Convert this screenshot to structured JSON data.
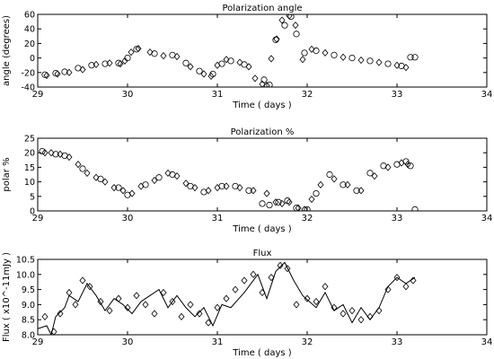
{
  "chart_data": [
    {
      "type": "scatter",
      "title": "Polarization angle",
      "xlabel": "Time ( days )",
      "ylabel": "angle (degrees)",
      "xlim": [
        29,
        34
      ],
      "ylim": [
        -40,
        60
      ],
      "xticks": [
        29,
        30,
        31,
        32,
        33,
        34
      ],
      "yticks": [
        -40,
        -20,
        0,
        20,
        40,
        60
      ],
      "grid": false,
      "series": [
        {
          "marker": "diamond",
          "x": [
            29.1,
            29.22,
            29.35,
            29.5,
            29.65,
            29.8,
            29.92,
            29.97,
            30.04,
            30.12,
            30.25,
            30.4,
            30.55,
            30.7,
            30.85,
            30.93,
            31.0,
            31.1,
            31.25,
            31.35,
            31.42,
            31.5,
            31.55,
            31.6,
            31.66,
            31.72,
            31.8,
            31.87,
            31.95,
            32.05,
            32.2,
            32.4,
            32.6,
            32.8,
            33.0,
            33.1
          ],
          "y": [
            -24,
            -22,
            -20,
            -16,
            -9,
            -7,
            -8,
            -4,
            8,
            13,
            8,
            3,
            2,
            -12,
            -22,
            -25,
            -10,
            -2,
            -6,
            -12,
            -28,
            -36,
            -38,
            -1,
            26,
            52,
            58,
            45,
            -2,
            12,
            7,
            1,
            -3,
            -6,
            -10,
            -13
          ]
        },
        {
          "marker": "circle",
          "x": [
            29.08,
            29.2,
            29.3,
            29.45,
            29.6,
            29.75,
            29.9,
            30.0,
            30.1,
            30.3,
            30.5,
            30.65,
            30.8,
            30.95,
            31.05,
            31.15,
            31.3,
            31.52,
            31.58,
            31.65,
            31.75,
            31.82,
            31.88,
            31.97,
            32.1,
            32.3,
            32.5,
            32.7,
            32.9,
            33.05,
            33.15,
            33.2
          ],
          "y": [
            -23,
            -21,
            -19,
            -14,
            -10,
            -8,
            -7,
            0,
            12,
            6,
            4,
            -7,
            -18,
            -22,
            -8,
            -4,
            -9,
            -30,
            -37,
            25,
            45,
            57,
            33,
            7,
            10,
            4,
            0,
            -4,
            -8,
            -11,
            1,
            1
          ]
        }
      ]
    },
    {
      "type": "scatter",
      "title": "Polarization %",
      "xlabel": "Time ( days )",
      "ylabel": "polar %",
      "xlim": [
        29,
        34
      ],
      "ylim": [
        0,
        25
      ],
      "xticks": [
        29,
        30,
        31,
        32,
        33,
        34
      ],
      "yticks": [
        0,
        5,
        10,
        15,
        20,
        25
      ],
      "grid": false,
      "series": [
        {
          "marker": "diamond",
          "x": [
            29.08,
            29.15,
            29.25,
            29.35,
            29.45,
            29.55,
            29.65,
            29.75,
            29.85,
            29.95,
            30.05,
            30.15,
            30.3,
            30.45,
            30.55,
            30.65,
            30.75,
            30.9,
            31.0,
            31.1,
            31.25,
            31.4,
            31.55,
            31.65,
            31.72,
            31.8,
            31.9,
            31.97,
            32.05,
            32.15,
            32.3,
            32.45,
            32.6,
            32.75,
            32.9,
            33.05,
            33.12
          ],
          "y": [
            20,
            20,
            19.5,
            18.5,
            16,
            13,
            11.5,
            10,
            8,
            7,
            6,
            8.5,
            10.5,
            13,
            12,
            9.5,
            8,
            7,
            8,
            8.5,
            8,
            7,
            6,
            3,
            2.5,
            3,
            1,
            0.5,
            4,
            9,
            11,
            9,
            7,
            12,
            15,
            16.5,
            16
          ]
        },
        {
          "marker": "circle",
          "x": [
            29.05,
            29.2,
            29.3,
            29.5,
            29.7,
            29.9,
            30.0,
            30.2,
            30.35,
            30.5,
            30.7,
            30.85,
            31.05,
            31.2,
            31.35,
            31.5,
            31.58,
            31.68,
            31.78,
            31.88,
            32.0,
            32.1,
            32.25,
            32.4,
            32.55,
            32.7,
            32.85,
            33.0,
            33.1,
            33.15,
            33.2
          ],
          "y": [
            20.5,
            19.5,
            19,
            14.5,
            11,
            8,
            5.5,
            9,
            11.5,
            12.5,
            8.5,
            6.5,
            8.5,
            8.5,
            7,
            2.5,
            2,
            3,
            3.5,
            1,
            0.5,
            6,
            12.5,
            9,
            7,
            13,
            15.5,
            16,
            17,
            15.5,
            0.5
          ]
        }
      ]
    },
    {
      "type": "line",
      "title": "Flux",
      "xlabel": "Time ( days )",
      "ylabel": "Flux ( x10^-11mJy )",
      "xlim": [
        29,
        34
      ],
      "ylim": [
        8.0,
        10.5
      ],
      "xticks": [
        29,
        30,
        31,
        32,
        33,
        34
      ],
      "yticks": [
        8.0,
        8.5,
        9.0,
        9.5,
        10.0,
        10.5
      ],
      "grid": false,
      "series": [
        {
          "style": "line",
          "x": [
            29.0,
            29.1,
            29.15,
            29.2,
            29.3,
            29.35,
            29.45,
            29.55,
            29.65,
            29.75,
            29.85,
            29.95,
            30.05,
            30.15,
            30.25,
            30.35,
            30.45,
            30.55,
            30.65,
            30.75,
            30.85,
            30.95,
            31.05,
            31.15,
            31.3,
            31.45,
            31.55,
            31.65,
            31.75,
            31.85,
            31.95,
            32.1,
            32.2,
            32.3,
            32.4,
            32.5,
            32.6,
            32.7,
            32.8,
            32.9,
            33.0,
            33.1,
            33.2
          ],
          "y": [
            8.2,
            8.3,
            8.0,
            8.6,
            8.9,
            9.3,
            9.1,
            9.7,
            9.3,
            8.8,
            9.2,
            9.0,
            8.7,
            9.1,
            9.3,
            9.5,
            8.9,
            9.3,
            8.9,
            8.6,
            8.9,
            8.3,
            9.0,
            8.9,
            9.4,
            10.0,
            9.2,
            10.1,
            10.4,
            9.8,
            9.3,
            8.9,
            9.4,
            8.8,
            9.0,
            8.4,
            8.9,
            8.5,
            8.9,
            9.6,
            9.9,
            9.7,
            9.9
          ]
        },
        {
          "marker": "diamond",
          "x": [
            29.08,
            29.18,
            29.25,
            29.35,
            29.42,
            29.5,
            29.58,
            29.7,
            29.8,
            29.9,
            30.0,
            30.1,
            30.2,
            30.3,
            30.4,
            30.5,
            30.6,
            30.7,
            30.8,
            30.9,
            31.0,
            31.1,
            31.2,
            31.3,
            31.4,
            31.5,
            31.6,
            31.7,
            31.78,
            31.88,
            32.0,
            32.1,
            32.2,
            32.3,
            32.4,
            32.5,
            32.6,
            32.7,
            32.8,
            32.9,
            33.0,
            33.1,
            33.18
          ],
          "y": [
            8.6,
            8.1,
            8.7,
            9.4,
            9.0,
            9.8,
            9.6,
            9.1,
            8.8,
            9.2,
            8.9,
            9.3,
            9.0,
            8.7,
            9.4,
            9.1,
            8.6,
            9.0,
            8.7,
            8.4,
            8.9,
            9.2,
            9.5,
            9.8,
            10.0,
            9.4,
            9.9,
            10.3,
            10.2,
            9.0,
            9.2,
            9.1,
            9.6,
            8.9,
            8.7,
            8.8,
            8.5,
            8.6,
            8.8,
            9.5,
            9.9,
            9.6,
            9.8
          ]
        }
      ]
    }
  ]
}
